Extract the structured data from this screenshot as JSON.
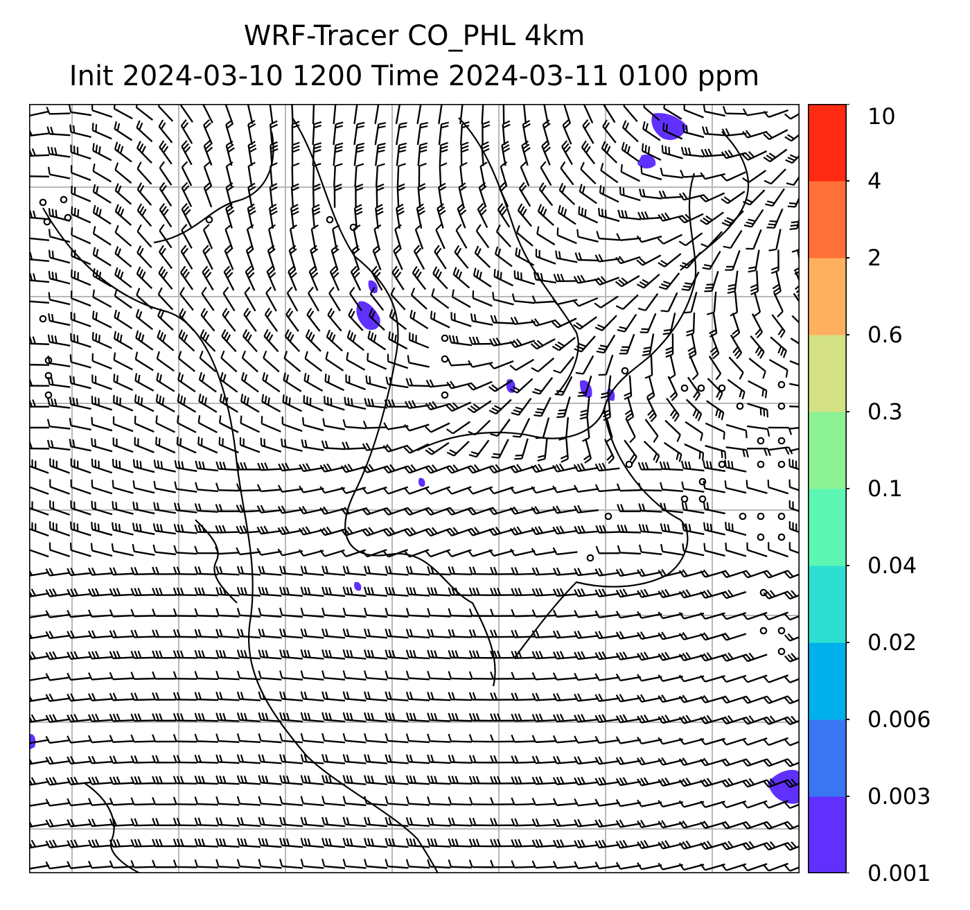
{
  "title": {
    "line1": "WRF-Tracer CO_PHL 4km",
    "line2": "Init 2024-03-10 1200 Time 2024-03-11 0100 ppm"
  },
  "colorbar": {
    "levels": [
      {
        "label": "0.001",
        "color": "#6030ff"
      },
      {
        "label": "0.003",
        "color": "#3a76f2"
      },
      {
        "label": "0.006",
        "color": "#00b0ea"
      },
      {
        "label": "0.02",
        "color": "#2ddfd2"
      },
      {
        "label": "0.04",
        "color": "#5cf6b2"
      },
      {
        "label": "0.1",
        "color": "#8cf294"
      },
      {
        "label": "0.3",
        "color": "#d4e185"
      },
      {
        "label": "0.6",
        "color": "#ffb05e"
      },
      {
        "label": "2",
        "color": "#ff7038"
      },
      {
        "label": "4",
        "color": "#ff2a12"
      },
      {
        "label": "10",
        "color": null
      }
    ]
  },
  "map": {
    "grid_color": "#b8b8b8",
    "barb_color": "#000000",
    "tracer_color": "#6030ff",
    "coastline_color": "#000000"
  }
}
